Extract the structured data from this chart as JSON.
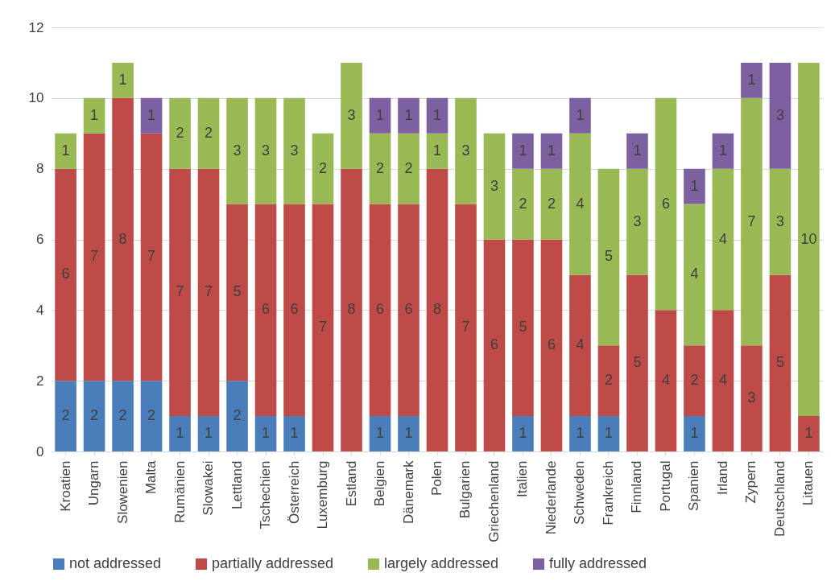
{
  "chart_data": {
    "type": "bar",
    "stacked": true,
    "categories": [
      "Kroatien",
      "Ungarn",
      "Slowenien",
      "Malta",
      "Rumänien",
      "Slowakei",
      "Lettland",
      "Tschechien",
      "Österreich",
      "Luxemburg",
      "Estland",
      "Belgien",
      "Dänemark",
      "Polen",
      "Bulgarien",
      "Griechenland",
      "Italien",
      "Niederlande",
      "Schweden",
      "Frankreich",
      "Finnland",
      "Portugal",
      "Spanien",
      "Irland",
      "Zypern",
      "Deutschland",
      "Litauen"
    ],
    "series": [
      {
        "name": "not addressed",
        "color": "#4a7ebb",
        "values": [
          2,
          2,
          2,
          2,
          1,
          1,
          2,
          1,
          1,
          null,
          null,
          1,
          1,
          null,
          null,
          null,
          1,
          null,
          1,
          1,
          null,
          null,
          1,
          null,
          null,
          null,
          null
        ]
      },
      {
        "name": "partially addressed",
        "color": "#be4b48",
        "values": [
          6,
          7,
          8,
          7,
          7,
          7,
          5,
          6,
          6,
          7,
          8,
          6,
          6,
          8,
          7,
          6,
          5,
          6,
          4,
          2,
          5,
          4,
          2,
          4,
          3,
          5,
          1
        ]
      },
      {
        "name": "largely addressed",
        "color": "#98b954",
        "values": [
          1,
          1,
          1,
          null,
          2,
          2,
          3,
          3,
          3,
          2,
          3,
          2,
          2,
          1,
          3,
          3,
          2,
          2,
          4,
          5,
          3,
          6,
          4,
          4,
          7,
          3,
          10
        ]
      },
      {
        "name": "fully addressed",
        "color": "#7d60a0",
        "values": [
          null,
          null,
          null,
          1,
          null,
          null,
          null,
          null,
          null,
          null,
          null,
          1,
          1,
          1,
          null,
          null,
          1,
          1,
          1,
          null,
          1,
          null,
          1,
          1,
          1,
          3,
          null
        ]
      }
    ],
    "ylim": [
      0,
      12
    ],
    "yticks": [
      0,
      2,
      4,
      6,
      8,
      10,
      12
    ],
    "grid": "y",
    "legend": "bottom",
    "data_labels": true
  }
}
